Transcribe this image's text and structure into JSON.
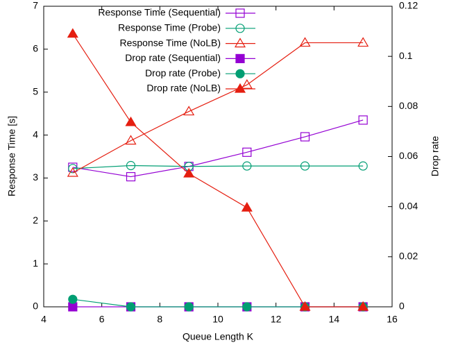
{
  "chart_data": {
    "type": "line",
    "xlabel": "Queue Length K",
    "ylabel": "Response Time [s]",
    "y2label": "Drop rate",
    "x": [
      5,
      7,
      9,
      11,
      13,
      15
    ],
    "xlim": [
      4,
      16
    ],
    "xticks": [
      4,
      6,
      8,
      10,
      12,
      14,
      16
    ],
    "ylim": [
      0,
      7
    ],
    "yticks": [
      0,
      1,
      2,
      3,
      4,
      5,
      6,
      7
    ],
    "y2lim": [
      0,
      0.12
    ],
    "y2ticks": [
      0,
      0.02,
      0.04,
      0.06,
      0.08,
      0.1,
      0.12
    ],
    "legend": "top-right",
    "series": [
      {
        "name": "Response Time (Sequential)",
        "color": "#9400d3",
        "marker": "square",
        "filled": false,
        "values": [
          3.25,
          3.03,
          3.27,
          3.6,
          3.96,
          4.35
        ]
      },
      {
        "name": "Response Time (Probe)",
        "color": "#009e73",
        "marker": "circle",
        "filled": false,
        "values": [
          3.22,
          3.29,
          3.27,
          3.28,
          3.28,
          3.28
        ]
      },
      {
        "name": "Response Time (NoLB)",
        "color": "#e51e10",
        "marker": "triangle",
        "filled": false,
        "values": [
          3.12,
          3.87,
          4.55,
          5.17,
          6.15,
          6.15
        ]
      },
      {
        "name": "Drop rate (Sequential)",
        "color": "#9400d3",
        "marker": "square",
        "filled": true,
        "axis": "y2",
        "values": [
          0,
          0,
          0,
          0,
          0,
          0
        ]
      },
      {
        "name": "Drop rate (Probe)",
        "color": "#009e73",
        "marker": "circle",
        "filled": true,
        "axis": "y2",
        "values": [
          0.003,
          0,
          0,
          0,
          0,
          0
        ]
      },
      {
        "name": "Drop rate (NoLB)",
        "color": "#e51e10",
        "marker": "triangle",
        "filled": true,
        "axis": "y2",
        "values": [
          0.109,
          0.0737,
          0.0532,
          0.0396,
          0,
          0
        ]
      }
    ]
  }
}
